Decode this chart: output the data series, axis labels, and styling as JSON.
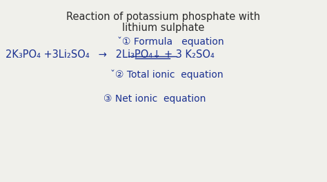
{
  "title_line1": "Reaction of potassium phosphate with",
  "title_line2": "lithium sulphate",
  "title_color": "#2a2a2a",
  "bg_color": "#f0f0eb",
  "blue_color": "#1a3090",
  "label1_prefix": "ˇ① Formula   equation",
  "eq_left": "2K₃PO₄ +3Li₂SO₄",
  "eq_arrow": " → ",
  "eq_right": " 2Li₃PO₄↓ + 3 K₂SO₄",
  "label2_prefix": "ˇ② Total ionic  equation",
  "label3_prefix": "③ Net ionic  equation",
  "title_fontsize": 10.5,
  "eq_fontsize": 10.5,
  "label_fontsize": 10.0
}
